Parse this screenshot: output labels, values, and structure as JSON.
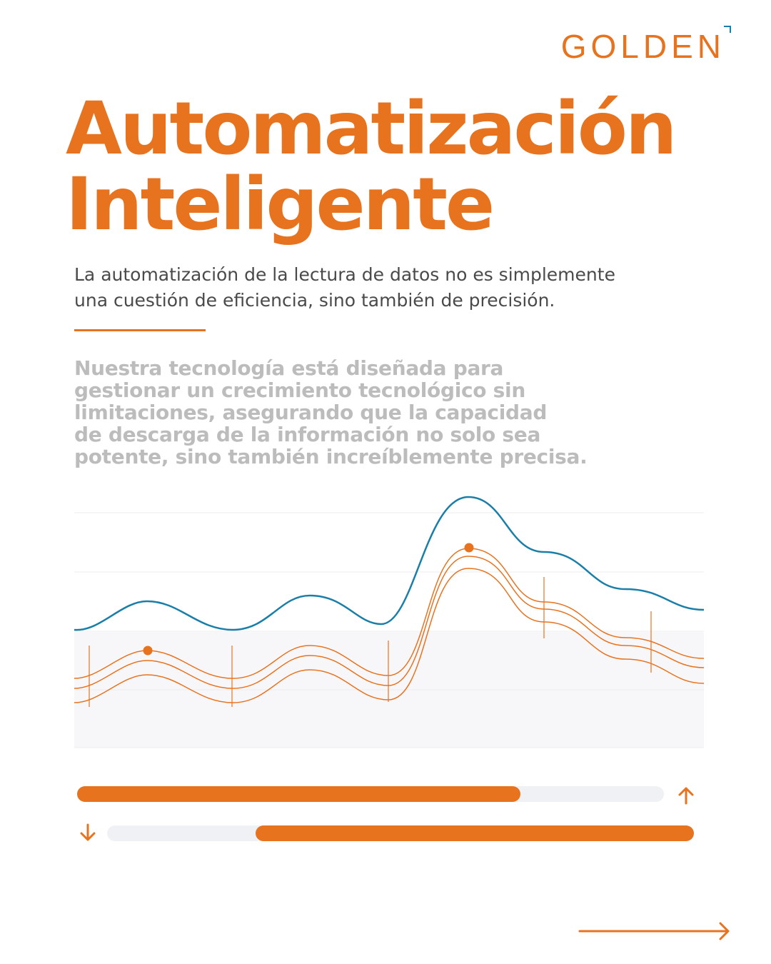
{
  "brand": {
    "logo_text": "GOLDEN",
    "accent": "#e8731f",
    "secondary": "#1a7fa8"
  },
  "hero": {
    "title_line1": "Automatización",
    "title_line2": "Inteligente"
  },
  "intro": {
    "line1": "La automatización de la lectura de datos no es simplemente",
    "line2": "una cuestión de eficiencia, sino también de precisión."
  },
  "body": {
    "line1": "Nuestra tecnología está diseñada para",
    "line2": "gestionar un crecimiento tecnológico sin",
    "line3": "limitaciones, asegurando que la capacidad",
    "line4": "de descarga de la información no solo sea",
    "line5": "potente, sino también increíblemente precisa."
  },
  "progress": {
    "upload_fill_fraction": 0.755,
    "download_start_fraction": 0.25,
    "download_end_fraction": 1.0
  },
  "icons": {
    "upload": "arrow-up-icon",
    "download": "arrow-down-icon",
    "next": "arrow-right-icon"
  }
}
